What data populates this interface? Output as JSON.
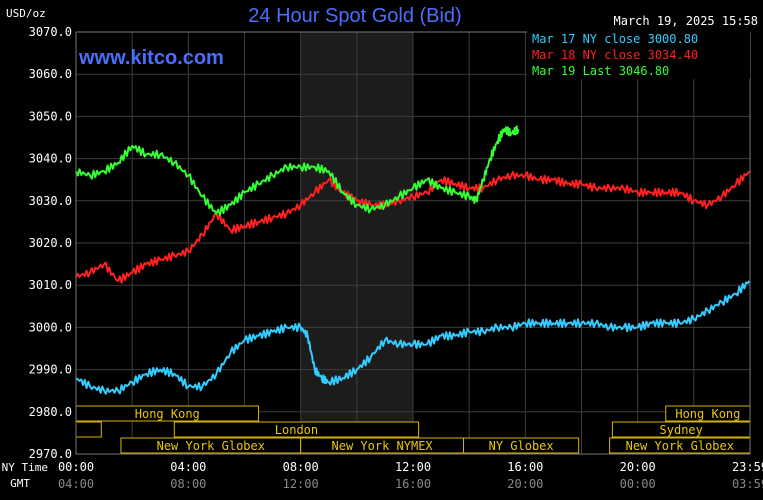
{
  "header": {
    "title": "24 Hour Spot Gold (Bid)",
    "timestamp": "March 19, 2025 15:58",
    "unit": "USD/oz",
    "watermark": "www.kitco.com"
  },
  "legend": [
    {
      "text": "Mar 17 NY close 3000.80",
      "color": "#33ccff"
    },
    {
      "text": "Mar 18 NY close 3034.40",
      "color": "#ff2020"
    },
    {
      "text": "Mar 19 Last 3046.80",
      "color": "#33ff33"
    }
  ],
  "time_rows": {
    "ny_label": "NY Time",
    "gmt_label": "GMT",
    "ny_ticks": [
      "00:00",
      "04:00",
      "08:00",
      "12:00",
      "16:00",
      "20:00",
      "23:59"
    ],
    "gmt_ticks": [
      "04:00",
      "08:00",
      "12:00",
      "16:00",
      "20:00",
      "00:00",
      "03:59"
    ]
  },
  "sessions": {
    "hong_kong": "Hong Kong",
    "london": "London",
    "ny_globex": "New York Globex",
    "ny_nymex": "New York NYMEX",
    "ny_globex_short": "NY Globex",
    "sydney": "Sydney"
  },
  "chart_data": {
    "type": "line",
    "title": "24 Hour Spot Gold (Bid)",
    "ylabel": "USD/oz",
    "ylim": [
      2970,
      3070
    ],
    "yticks": [
      "3070.0",
      "3060.0",
      "3050.0",
      "3040.0",
      "3030.0",
      "3020.0",
      "3010.0",
      "3000.0",
      "2990.0",
      "2980.0",
      "2970.0"
    ],
    "xlim": [
      0,
      24
    ],
    "x_unit": "hours (NY Time)",
    "shaded_range": [
      8,
      12
    ],
    "grid": true,
    "legend_position": "top-right",
    "series": [
      {
        "name": "Mar 17 NY close 3000.80",
        "color": "#33ccff",
        "x": [
          0,
          0.5,
          1,
          1.5,
          2,
          2.5,
          3,
          3.5,
          4,
          4.5,
          5,
          5.5,
          6,
          6.5,
          7,
          7.5,
          8,
          8.25,
          8.5,
          8.75,
          9,
          9.5,
          10,
          10.5,
          11,
          11.5,
          12,
          12.5,
          13,
          13.5,
          14,
          14.5,
          15,
          15.5,
          16,
          16.5,
          17,
          17.5,
          18,
          18.5,
          19,
          19.5,
          20,
          20.5,
          21,
          21.5,
          22,
          22.5,
          23,
          23.5,
          23.98
        ],
        "y": [
          2988,
          2986,
          2985,
          2985,
          2987,
          2989,
          2990,
          2989,
          2986,
          2986,
          2989,
          2994,
          2997,
          2998,
          2999,
          3000,
          3000,
          2998,
          2990,
          2988,
          2987,
          2988,
          2990,
          2993,
          2997,
          2996,
          2996,
          2996,
          2998,
          2998,
          2999,
          2999,
          3000,
          3000,
          3001,
          3001,
          3001,
          3001,
          3001,
          3001,
          3000,
          3000,
          3000,
          3001,
          3001,
          3001,
          3002,
          3004,
          3006,
          3008,
          3011
        ]
      },
      {
        "name": "Mar 18 NY close 3034.40",
        "color": "#ff2020",
        "x": [
          0,
          0.5,
          1,
          1.5,
          2,
          2.5,
          3,
          3.5,
          4,
          4.5,
          5,
          5.5,
          6,
          6.5,
          7,
          7.5,
          8,
          8.5,
          9,
          9.5,
          10,
          10.5,
          11,
          11.5,
          12,
          12.5,
          13,
          13.5,
          14,
          14.5,
          15,
          15.5,
          16,
          16.5,
          17,
          17.5,
          18,
          18.5,
          19,
          19.5,
          20,
          20.5,
          21,
          21.5,
          22,
          22.5,
          23,
          23.5,
          23.98
        ],
        "y": [
          3012,
          3013,
          3015,
          3011,
          3013,
          3015,
          3016,
          3017,
          3018,
          3022,
          3027,
          3023,
          3024,
          3025,
          3026,
          3027,
          3029,
          3032,
          3035,
          3032,
          3030,
          3029,
          3029,
          3030,
          3031,
          3032,
          3035,
          3034,
          3033,
          3033,
          3035,
          3036,
          3036,
          3035,
          3035,
          3034,
          3034,
          3033,
          3033,
          3033,
          3032,
          3032,
          3032,
          3032,
          3030,
          3029,
          3031,
          3034,
          3037
        ]
      },
      {
        "name": "Mar 19 Last 3046.80",
        "color": "#33ff33",
        "x": [
          0,
          0.5,
          1,
          1.5,
          2,
          2.5,
          3,
          3.5,
          4,
          4.5,
          5,
          5.5,
          6,
          6.5,
          7,
          7.5,
          8,
          8.5,
          9,
          9.5,
          10,
          10.5,
          11,
          11.5,
          12,
          12.5,
          13,
          13.5,
          14,
          14.25,
          14.5,
          14.75,
          15,
          15.25,
          15.5,
          15.75
        ],
        "y": [
          3037,
          3036,
          3037,
          3039,
          3043,
          3041,
          3041,
          3039,
          3036,
          3031,
          3027,
          3029,
          3032,
          3034,
          3036,
          3038,
          3038,
          3038,
          3037,
          3032,
          3029,
          3028,
          3029,
          3031,
          3033,
          3035,
          3033,
          3032,
          3031,
          3030,
          3035,
          3040,
          3044,
          3047,
          3046,
          3047
        ]
      }
    ]
  }
}
